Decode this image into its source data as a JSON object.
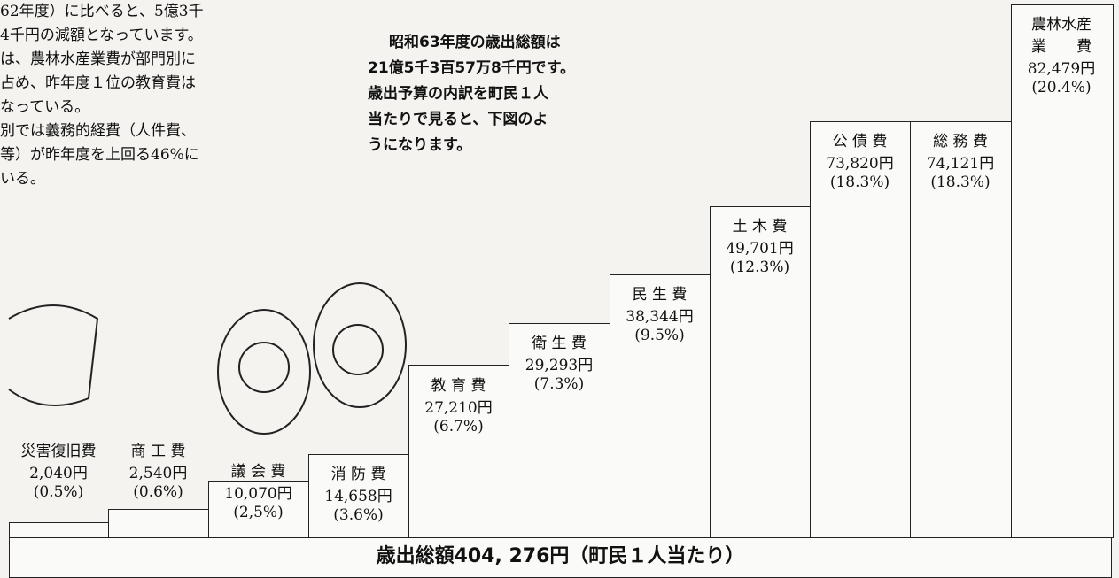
{
  "left_text": {
    "lines": [
      "62年度）に比べると、5億3千",
      "4千円の減額となっています。",
      "は、農林水産業費が部門別に",
      "占め、昨年度１位の教育費は",
      "なっている。",
      "別では義務的経費（人件費、",
      "等）が昨年度を上回る46%に",
      "いる。"
    ]
  },
  "intro": {
    "lines": [
      "昭和63年度の歳出総額は",
      "21億5千3百57万8千円です。",
      "歳出予算の内訳を町民１人",
      "当たりで見ると、下図のよ",
      "うになります。"
    ]
  },
  "items": [
    {
      "name_lines": [
        "災害復旧費"
      ],
      "amount": "2,040円",
      "percent": "(0.5%)"
    },
    {
      "name_lines": [
        "商 工 費"
      ],
      "amount": "2,540円",
      "percent": "(0.6%)"
    },
    {
      "name_lines": [
        "議 会 費"
      ],
      "amount": "10,070円",
      "percent": "(2,5%)"
    },
    {
      "name_lines": [
        "消 防 費"
      ],
      "amount": "14,658円",
      "percent": "(3.6%)"
    },
    {
      "name_lines": [
        "教 育 費"
      ],
      "amount": "27,210円",
      "percent": "(6.7%)"
    },
    {
      "name_lines": [
        "衛 生 費"
      ],
      "amount": "29,293円",
      "percent": "(7.3%)"
    },
    {
      "name_lines": [
        "民 生 費"
      ],
      "amount": "38,344円",
      "percent": "(9.5%)"
    },
    {
      "name_lines": [
        "土 木 費"
      ],
      "amount": "49,701円",
      "percent": "(12.3%)"
    },
    {
      "name_lines": [
        "公 債 費"
      ],
      "amount": "73,820円",
      "percent": "(18.3%)"
    },
    {
      "name_lines": [
        "総 務 費"
      ],
      "amount": "74,121円",
      "percent": "(18.3%)"
    },
    {
      "name_lines": [
        "農林水産",
        "業　　費"
      ],
      "amount": "82,479円",
      "percent": "(20.4%)"
    }
  ],
  "footer": {
    "text": "歳出総額404, 276円（町民１人当たり）"
  }
}
